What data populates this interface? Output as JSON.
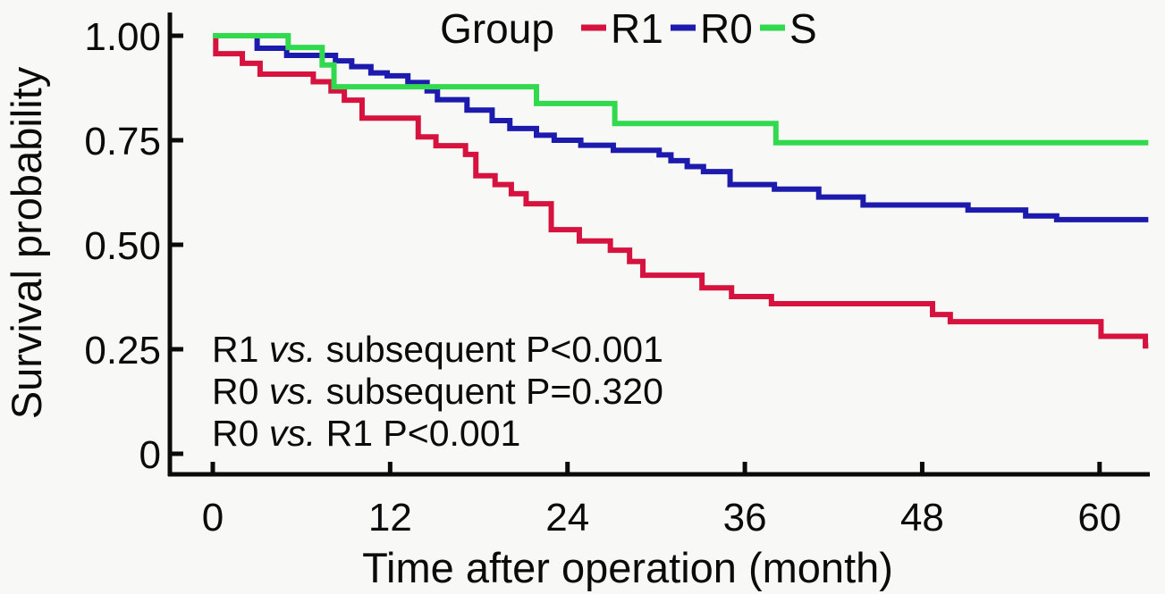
{
  "legend": {
    "title": "Group",
    "entries": [
      {
        "label": "R1",
        "color": "#d6123f"
      },
      {
        "label": "R0",
        "color": "#1d1aae"
      },
      {
        "label": "S",
        "color": "#31d94e"
      }
    ]
  },
  "annotations": [
    {
      "pre": "R1 ",
      "italic": "vs.",
      "post": " subsequent P<0.001"
    },
    {
      "pre": "R0 ",
      "italic": "vs.",
      "post": " subsequent P=0.320"
    },
    {
      "pre": "R0 ",
      "italic": "vs.",
      "post": " R1 P<0.001"
    }
  ],
  "chart_data": {
    "type": "line",
    "subtype": "kaplan-meier-step-curves",
    "title": "",
    "xlabel": "Time after operation (month)",
    "ylabel": "Survival probability",
    "xticks": [
      0,
      12,
      24,
      36,
      48,
      60
    ],
    "ytick_labels": [
      "1.00",
      "0.75",
      "0.50",
      "0.25",
      "0"
    ],
    "ytick_values": [
      1.0,
      0.75,
      0.5,
      0.25,
      0
    ],
    "xlim": [
      0,
      63.3
    ],
    "ylim": [
      0,
      1.0
    ],
    "grid": false,
    "legend_position": "top",
    "axis_color": "#0b0b0b",
    "background": "#f8f8f6",
    "series": [
      {
        "name": "R1",
        "color": "#d6123f",
        "end": 63.3,
        "points": [
          [
            0,
            1.0
          ],
          [
            0.2,
            0.957
          ],
          [
            2.0,
            0.934
          ],
          [
            3.2,
            0.908
          ],
          [
            6.8,
            0.89
          ],
          [
            8.0,
            0.868
          ],
          [
            8.9,
            0.846
          ],
          [
            10.1,
            0.803
          ],
          [
            13.9,
            0.758
          ],
          [
            15.1,
            0.737
          ],
          [
            17.1,
            0.716
          ],
          [
            17.8,
            0.665
          ],
          [
            19.1,
            0.644
          ],
          [
            20.2,
            0.622
          ],
          [
            21.2,
            0.598
          ],
          [
            22.9,
            0.536
          ],
          [
            24.8,
            0.509
          ],
          [
            26.9,
            0.487
          ],
          [
            28.2,
            0.46
          ],
          [
            29.1,
            0.427
          ],
          [
            33.1,
            0.397
          ],
          [
            35.1,
            0.376
          ],
          [
            37.8,
            0.359
          ],
          [
            48.7,
            0.333
          ],
          [
            49.9,
            0.316
          ],
          [
            60.1,
            0.281
          ],
          [
            63.1,
            0.258
          ]
        ]
      },
      {
        "name": "R0",
        "color": "#1d1aae",
        "end": 63.3,
        "points": [
          [
            0,
            1.0
          ],
          [
            3.0,
            0.97
          ],
          [
            5.0,
            0.953
          ],
          [
            8.3,
            0.94
          ],
          [
            9.4,
            0.926
          ],
          [
            10.7,
            0.911
          ],
          [
            11.8,
            0.904
          ],
          [
            13.2,
            0.888
          ],
          [
            14.5,
            0.868
          ],
          [
            15.2,
            0.847
          ],
          [
            17.2,
            0.822
          ],
          [
            18.9,
            0.797
          ],
          [
            20.1,
            0.778
          ],
          [
            21.9,
            0.762
          ],
          [
            23.1,
            0.75
          ],
          [
            24.9,
            0.738
          ],
          [
            27.1,
            0.726
          ],
          [
            30.2,
            0.715
          ],
          [
            31.0,
            0.701
          ],
          [
            32.1,
            0.687
          ],
          [
            33.2,
            0.675
          ],
          [
            35.0,
            0.644
          ],
          [
            38.0,
            0.633
          ],
          [
            41.0,
            0.614
          ],
          [
            44.0,
            0.595
          ],
          [
            51.1,
            0.583
          ],
          [
            55.0,
            0.569
          ],
          [
            57.1,
            0.56
          ]
        ]
      },
      {
        "name": "S",
        "color": "#31d94e",
        "end": 63.3,
        "points": [
          [
            0,
            1.0
          ],
          [
            5.1,
            0.972
          ],
          [
            7.4,
            0.93
          ],
          [
            8.2,
            0.878
          ],
          [
            21.9,
            0.838
          ],
          [
            27.2,
            0.79
          ],
          [
            38.1,
            0.744
          ]
        ]
      }
    ]
  }
}
